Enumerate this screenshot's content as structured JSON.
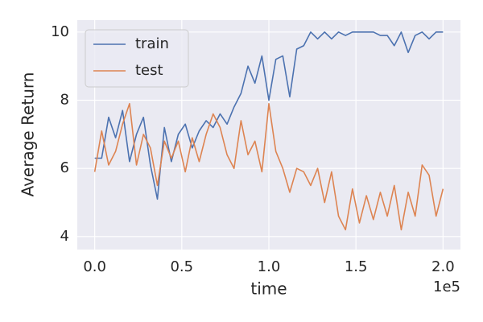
{
  "chart_data": {
    "type": "line",
    "xlabel": "time",
    "ylabel": "Average Return",
    "x_offset_text": "1e5",
    "x": [
      0,
      0.04,
      0.08,
      0.12,
      0.16,
      0.2,
      0.24,
      0.28,
      0.32,
      0.36,
      0.4,
      0.44,
      0.48,
      0.52,
      0.56,
      0.6,
      0.64,
      0.68,
      0.72,
      0.76,
      0.8,
      0.84,
      0.88,
      0.92,
      0.96,
      1.0,
      1.04,
      1.08,
      1.12,
      1.16,
      1.2,
      1.24,
      1.28,
      1.32,
      1.36,
      1.4,
      1.44,
      1.48,
      1.52,
      1.56,
      1.6,
      1.64,
      1.68,
      1.72,
      1.76,
      1.8,
      1.84,
      1.88,
      1.92,
      1.96,
      2.0
    ],
    "series": [
      {
        "name": "train",
        "color": "#4c72b0",
        "values": [
          6.3,
          6.3,
          7.5,
          6.9,
          7.7,
          6.2,
          7.0,
          7.5,
          6.1,
          5.1,
          7.2,
          6.2,
          7.0,
          7.3,
          6.6,
          7.1,
          7.4,
          7.2,
          7.6,
          7.3,
          7.8,
          8.2,
          9.0,
          8.5,
          9.3,
          8.0,
          9.2,
          9.3,
          8.1,
          9.5,
          9.6,
          10.0,
          9.8,
          10.0,
          9.8,
          10.0,
          9.9,
          10.0,
          10.0,
          10.0,
          10.0,
          9.9,
          9.9,
          9.6,
          10.0,
          9.4,
          9.9,
          10.0,
          9.8,
          10.0,
          10.0
        ]
      },
      {
        "name": "test",
        "color": "#dd8452",
        "values": [
          5.9,
          7.1,
          6.1,
          6.5,
          7.3,
          7.9,
          6.1,
          7.0,
          6.6,
          5.5,
          6.8,
          6.3,
          6.8,
          5.9,
          6.9,
          6.2,
          7.0,
          7.6,
          7.2,
          6.4,
          6.0,
          7.4,
          6.4,
          6.8,
          5.9,
          7.9,
          6.5,
          6.0,
          5.3,
          6.0,
          5.9,
          5.5,
          6.0,
          5.0,
          5.9,
          4.6,
          4.2,
          5.4,
          4.4,
          5.2,
          4.5,
          5.3,
          4.6,
          5.5,
          4.2,
          5.3,
          4.6,
          6.1,
          5.8,
          4.6,
          5.4
        ]
      }
    ],
    "xlim": [
      -0.1,
      2.1
    ],
    "xticks": [
      {
        "value": 0,
        "label": "0.0"
      },
      0.5,
      {
        "value": 1,
        "label": "1.0"
      },
      1.5,
      {
        "value": 2,
        "label": "2.0"
      }
    ],
    "ylim": [
      3.62,
      10.35
    ],
    "yticks": [
      4,
      6,
      8,
      10
    ],
    "grid": true,
    "legend": "upper left"
  }
}
